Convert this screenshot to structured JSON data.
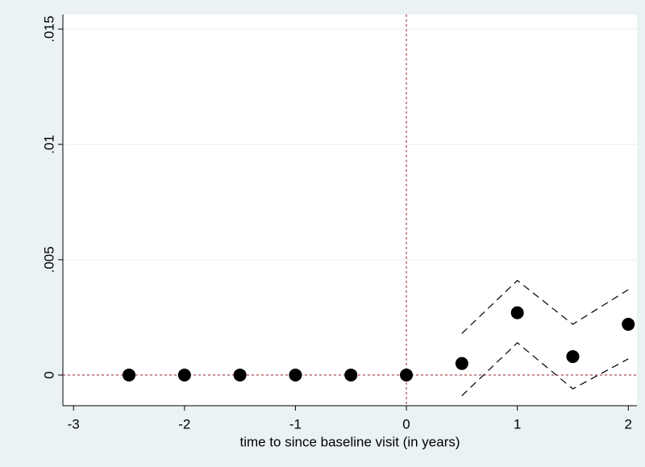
{
  "chart_data": {
    "type": "scatter",
    "x_label": "time to since baseline visit (in years)",
    "x": [
      -2.5,
      -2,
      -1.5,
      -1,
      -0.5,
      0,
      0.5,
      1,
      1.5,
      2
    ],
    "series": [
      {
        "kind": "markers",
        "color": "#000000",
        "values": [
          0,
          0,
          0,
          0,
          0,
          0,
          0.0005,
          0.0027,
          0.0008,
          0.0022
        ]
      },
      {
        "kind": "dashed",
        "color": "#000000",
        "values": [
          null,
          null,
          null,
          null,
          null,
          null,
          0.0018,
          0.0041,
          0.0022,
          0.0037
        ]
      },
      {
        "kind": "dashed",
        "color": "#000000",
        "values": [
          null,
          null,
          null,
          null,
          null,
          null,
          -0.0009,
          0.0014,
          -0.0006,
          0.0007
        ]
      }
    ],
    "xlim": [
      -3.096,
      2.078
    ],
    "ylim": [
      -0.00133,
      0.01563
    ],
    "xticks": [
      -3,
      -2,
      -1,
      0,
      1,
      2
    ],
    "yticks": [
      0,
      {
        "value": 0.005,
        "label": ".005"
      },
      {
        "value": 0.01,
        "label": ".01"
      },
      {
        "value": 0.015,
        "label": ".015"
      }
    ],
    "xline": 0,
    "yline": 0,
    "refline_color": "#a0202a",
    "grid": true
  }
}
